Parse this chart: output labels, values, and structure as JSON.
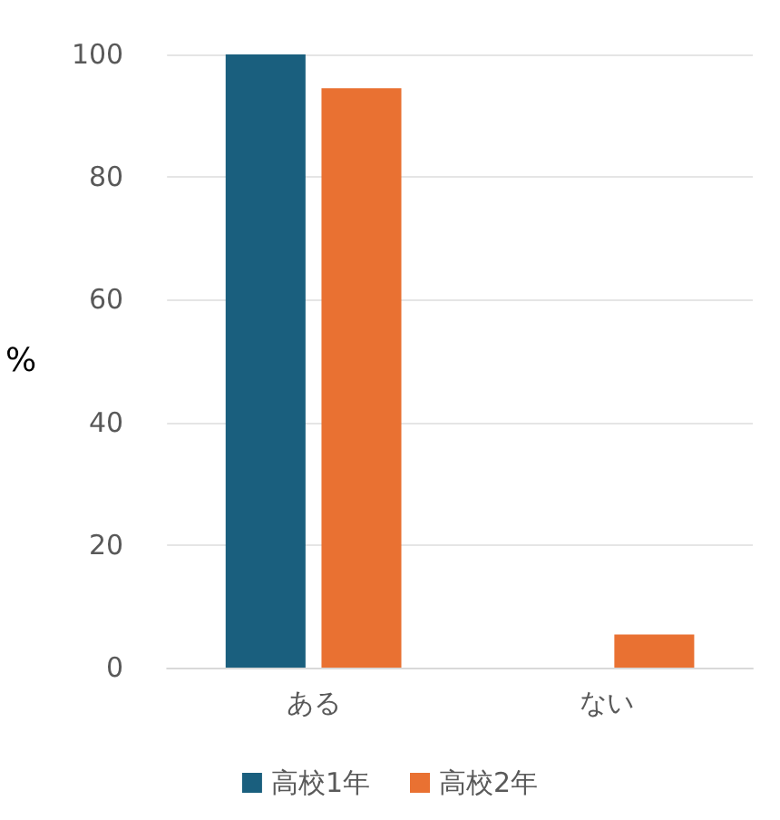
{
  "chart_data": {
    "type": "bar",
    "ylabel": "%",
    "categories": [
      "ある",
      "ない"
    ],
    "series": [
      {
        "name": "高校1年",
        "color": "#1a5f7e",
        "values": [
          100,
          0
        ]
      },
      {
        "name": "高校2年",
        "color": "#e97132",
        "values": [
          94.5,
          5.4
        ]
      }
    ],
    "ylim": [
      0,
      100
    ],
    "yticks": [
      0,
      20,
      40,
      60,
      80,
      100
    ],
    "grid": "y",
    "legend": "bottom"
  }
}
